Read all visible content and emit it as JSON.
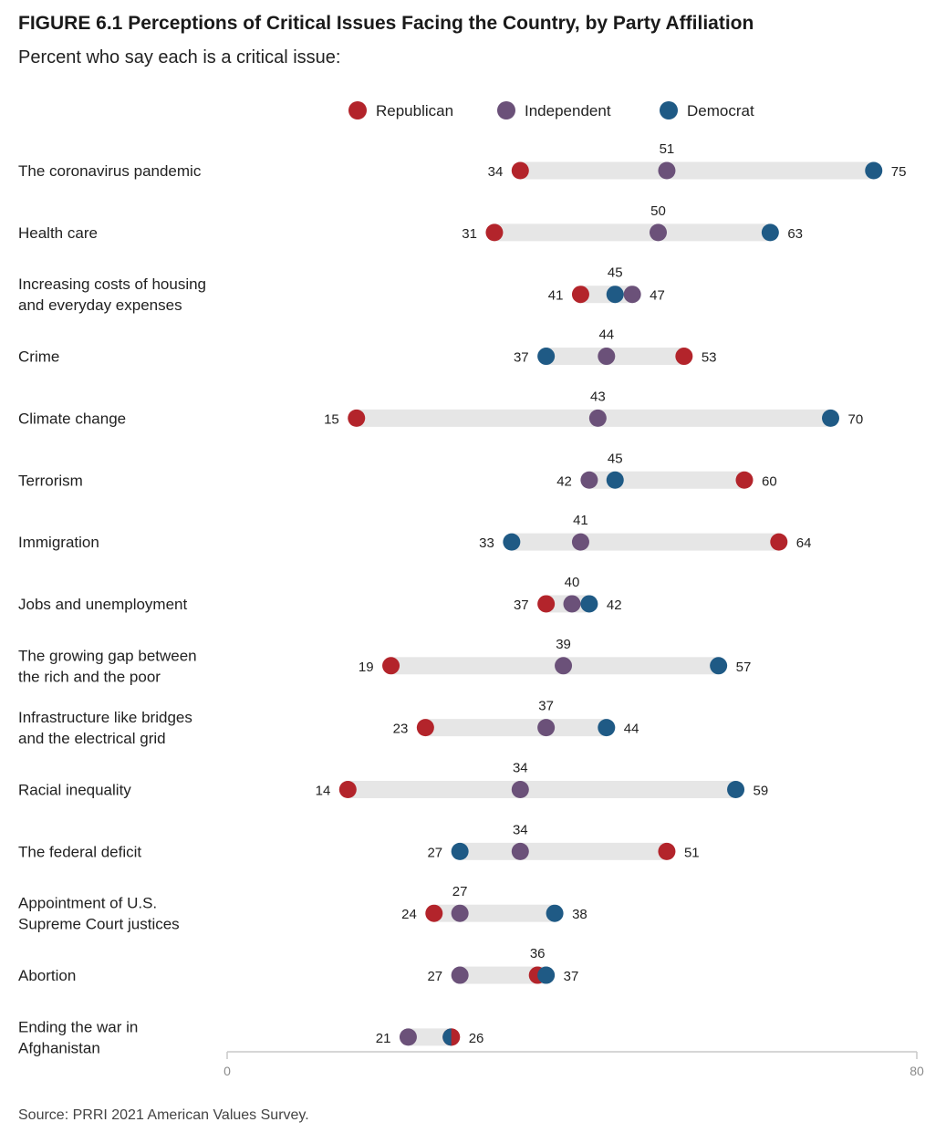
{
  "title": "FIGURE 6.1 Perceptions of Critical Issues Facing the Country, by Party Affiliation",
  "subtitle": "Percent who say each is a critical issue:",
  "source": "Source: PRRI 2021 American Values Survey.",
  "colors": {
    "republican": "#b3242b",
    "independent": "#6b5179",
    "democrat": "#1f5a85",
    "track": "#e6e6e6",
    "axis": "#c8c8c8"
  },
  "chart_data": {
    "type": "dot",
    "xlim": [
      0,
      80
    ],
    "x_ticks": [
      "0",
      "80"
    ],
    "legend": [
      {
        "key": "republican",
        "label": "Republican"
      },
      {
        "key": "independent",
        "label": "Independent"
      },
      {
        "key": "democrat",
        "label": "Democrat"
      }
    ],
    "categories": [
      {
        "label": [
          "The coronavirus pandemic"
        ],
        "republican": 34,
        "independent": 51,
        "democrat": 75
      },
      {
        "label": [
          "Health care"
        ],
        "republican": 31,
        "independent": 50,
        "democrat": 63
      },
      {
        "label": [
          "Increasing costs of housing",
          "and everyday expenses"
        ],
        "republican": 41,
        "independent": 47,
        "democrat": 45
      },
      {
        "label": [
          "Crime"
        ],
        "republican": 53,
        "independent": 44,
        "democrat": 37
      },
      {
        "label": [
          "Climate change"
        ],
        "republican": 15,
        "independent": 43,
        "democrat": 70
      },
      {
        "label": [
          "Terrorism"
        ],
        "republican": 60,
        "independent": 42,
        "democrat": 45
      },
      {
        "label": [
          "Immigration"
        ],
        "republican": 64,
        "independent": 41,
        "democrat": 33
      },
      {
        "label": [
          "Jobs and unemployment"
        ],
        "republican": 37,
        "independent": 40,
        "democrat": 42
      },
      {
        "label": [
          "The growing gap between",
          "the rich and the poor"
        ],
        "republican": 19,
        "independent": 39,
        "democrat": 57
      },
      {
        "label": [
          "Infrastructure like bridges",
          "and the electrical grid"
        ],
        "republican": 23,
        "independent": 37,
        "democrat": 44
      },
      {
        "label": [
          "Racial inequality"
        ],
        "republican": 14,
        "independent": 34,
        "democrat": 59
      },
      {
        "label": [
          "The federal deficit"
        ],
        "republican": 51,
        "independent": 34,
        "democrat": 27
      },
      {
        "label": [
          "Appointment of U.S.",
          "Supreme Court justices"
        ],
        "republican": 24,
        "independent": 27,
        "democrat": 38
      },
      {
        "label": [
          "Abortion"
        ],
        "republican": 36,
        "independent": 27,
        "democrat": 37
      },
      {
        "label": [
          "Ending the war in",
          "Afghanistan"
        ],
        "republican": 26,
        "independent": 21,
        "democrat": 26
      }
    ],
    "value_labels": [
      {
        "left": "34",
        "top": "51",
        "right": "75"
      },
      {
        "left": "31",
        "top": "50",
        "right": "63"
      },
      {
        "left": "41",
        "top": "45",
        "right": "47"
      },
      {
        "left": "37",
        "top": "44",
        "right": "53"
      },
      {
        "left": "15",
        "top": "43",
        "right": "70"
      },
      {
        "left": "42",
        "top": "45",
        "right": "60"
      },
      {
        "left": "33",
        "top": "41",
        "right": "64"
      },
      {
        "left": "37",
        "top": "40",
        "right": "42"
      },
      {
        "left": "19",
        "top": "39",
        "right": "57"
      },
      {
        "left": "23",
        "top": "37",
        "right": "44"
      },
      {
        "left": "14",
        "top": "34",
        "right": "59"
      },
      {
        "left": "27",
        "top": "34",
        "right": "51"
      },
      {
        "left": "24",
        "top": "27",
        "right": "38"
      },
      {
        "left": "27",
        "top": "36",
        "right": "37"
      },
      {
        "left": "21",
        "top": "",
        "right": "26"
      }
    ]
  }
}
